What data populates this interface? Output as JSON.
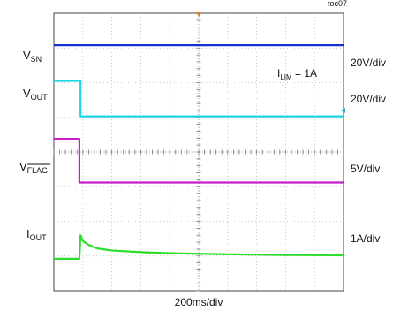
{
  "chart_data": {
    "type": "line",
    "figure_id": "toc07",
    "grid": true,
    "xlabel": "200ms/div",
    "annotation": {
      "base": "I",
      "sub": "LIM",
      "tail": " = 1A"
    },
    "x_divisions": 10,
    "y_divisions": 8,
    "trigger_marker_division": 5,
    "channels": [
      {
        "key": "vsn",
        "label_base": "V",
        "label_sub": "SN",
        "scale": "20V/div",
        "color": "#1a2fd0",
        "points": [
          [
            0,
            7.08
          ],
          [
            10,
            7.08
          ]
        ]
      },
      {
        "key": "vout",
        "label_base": "V",
        "label_sub": "OUT",
        "scale": "20V/div",
        "color": "#22d3e6",
        "points": [
          [
            0,
            6.05
          ],
          [
            0.92,
            6.05
          ],
          [
            0.92,
            5.03
          ],
          [
            10,
            5.03
          ]
        ]
      },
      {
        "key": "vflag",
        "label_base": "V",
        "label_sub": "FLAG",
        "sub_overline": true,
        "scale": "5V/div",
        "color": "#c81fc8",
        "points": [
          [
            0,
            4.38
          ],
          [
            0.88,
            4.38
          ],
          [
            0.88,
            3.12
          ],
          [
            10,
            3.12
          ]
        ]
      },
      {
        "key": "iout",
        "label_base": "I",
        "label_sub": "OUT",
        "scale": "1A/div",
        "color": "#2edc2e",
        "points": [
          [
            0,
            0.92
          ],
          [
            0.88,
            0.92
          ],
          [
            0.92,
            1.6
          ],
          [
            1.0,
            1.44
          ],
          [
            1.2,
            1.32
          ],
          [
            1.5,
            1.22
          ],
          [
            2,
            1.16
          ],
          [
            3,
            1.11
          ],
          [
            4,
            1.08
          ],
          [
            6,
            1.05
          ],
          [
            8,
            1.03
          ],
          [
            10,
            1.02
          ]
        ]
      }
    ]
  }
}
